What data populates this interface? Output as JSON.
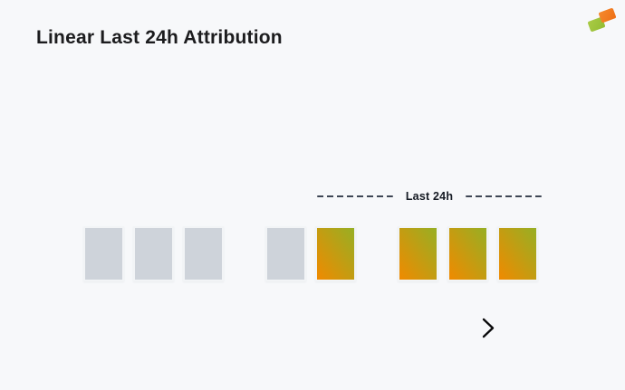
{
  "background": "#F7F8FA",
  "header": {
    "title": "Linear Last 24h Attribution"
  },
  "logo": {
    "icon": "brand-logo-overlapping-tiles",
    "green": "#93BC33",
    "orange": "#EE6F15"
  },
  "attribution_window": {
    "label": "Last 24h",
    "dash_color": "#3E4654"
  },
  "timeline": {
    "groups": [
      {
        "boxes": [
          "untracked",
          "untracked",
          "untracked"
        ]
      },
      {
        "boxes": [
          "untracked",
          "attributed"
        ]
      },
      {
        "boxes": [
          "attributed",
          "attributed",
          "attributed"
        ]
      }
    ],
    "colors": {
      "untracked": "#CED3DA",
      "attributed_start": "#F08A00",
      "attributed_end": "#97AF24",
      "box_border": "#F2F4F6"
    }
  },
  "arrow": {
    "icon": "time-axis-arrow-right"
  }
}
